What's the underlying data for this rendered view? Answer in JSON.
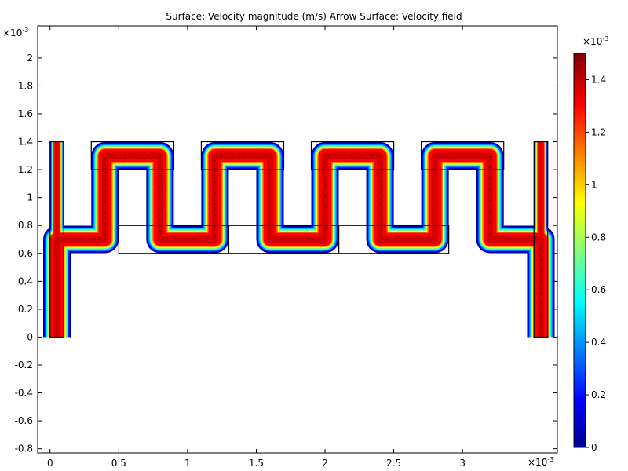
{
  "chart_data": {
    "type": "heatmap",
    "title": "Surface: Velocity magnitude (m/s)  Arrow Surface: Velocity field",
    "x_axis": {
      "range": [
        -9e-05,
        0.00369
      ],
      "ticks": [
        0,
        0.0005,
        0.001,
        0.0015,
        0.002,
        0.0025,
        0.003
      ],
      "tick_labels": [
        "0",
        "0.5",
        "1",
        "1.5",
        "2",
        "2.5",
        "3"
      ],
      "scale_label": "×10",
      "scale_exponent": "-3"
    },
    "y_axis": {
      "range": [
        -0.00083,
        0.00223
      ],
      "ticks": [
        -0.0008,
        -0.0006,
        -0.0004,
        -0.0002,
        0,
        0.0002,
        0.0004,
        0.0006,
        0.0008,
        0.001,
        0.0012,
        0.0014,
        0.0016,
        0.0018,
        0.002
      ],
      "tick_labels": [
        "-0.8",
        "-0.6",
        "-0.4",
        "-0.2",
        "0",
        "0.2",
        "0.4",
        "0.6",
        "0.8",
        "1",
        "1.2",
        "1.4",
        "1.6",
        "1.8",
        "2"
      ],
      "scale_label": "×10",
      "scale_exponent": "-3"
    },
    "colorbar": {
      "range": [
        0,
        0.0015
      ],
      "ticks": [
        0,
        0.0002,
        0.0004,
        0.0006,
        0.0008,
        0.001,
        0.0012,
        0.0014
      ],
      "tick_labels": [
        "0",
        "0.2",
        "0.4",
        "0.6",
        "0.8",
        "1",
        "1.2",
        "1.4"
      ],
      "scale_label": "×10",
      "scale_exponent": "-3",
      "colormap": [
        "#00008f",
        "#0000ff",
        "#00ffff",
        "#ffff00",
        "#ff0000",
        "#800000"
      ]
    },
    "geometry": {
      "channel_width": 0.0002,
      "inlet": {
        "x": [
          0,
          0.0001
        ],
        "y": [
          0,
          0.0014
        ]
      },
      "outlet": {
        "x": [
          0.00352,
          0.00362
        ],
        "y": [
          0,
          0.0014
        ]
      },
      "u_bends": [
        {
          "x": [
            0.0003,
            0.0009
          ],
          "y": [
            0.0012,
            0.0014
          ],
          "inner_x": [
            0.0005,
            0.0007
          ]
        },
        {
          "x": [
            0.0011,
            0.0017
          ],
          "y": [
            0.0012,
            0.0014
          ],
          "inner_x": [
            0.0013,
            0.0015
          ]
        },
        {
          "x": [
            0.0019,
            0.0025
          ],
          "y": [
            0.0012,
            0.0014
          ],
          "inner_x": [
            0.0021,
            0.0023
          ]
        },
        {
          "x": [
            0.0027,
            0.0033
          ],
          "y": [
            0.0012,
            0.0014
          ],
          "inner_x": [
            0.0029,
            0.0031
          ]
        }
      ],
      "bottom_bends": [
        {
          "x": [
            0.0005,
            0.0013
          ],
          "y": [
            0.0006,
            0.0008
          ],
          "inner_x": [
            0.0007,
            0.0011
          ]
        },
        {
          "x": [
            0.0013,
            0.0021
          ],
          "y": [
            0.0006,
            0.0008
          ],
          "inner_x": [
            0.0015,
            0.0019
          ]
        },
        {
          "x": [
            0.0021,
            0.0029
          ],
          "y": [
            0.0006,
            0.0008
          ],
          "inner_x": [
            0.0023,
            0.0027
          ]
        }
      ],
      "max_velocity": 0.0015
    }
  }
}
